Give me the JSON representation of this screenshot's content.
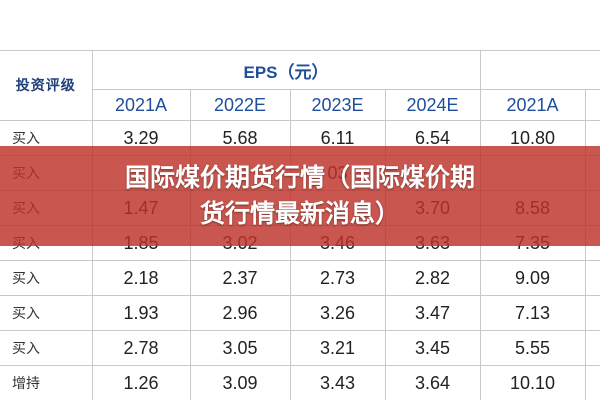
{
  "table": {
    "header": {
      "rating": "投资评级",
      "eps": "EPS（元）",
      "years": [
        "2021A",
        "2022E",
        "2023E",
        "2024E",
        "2021A"
      ]
    },
    "rows": [
      [
        "买入",
        "3.29",
        "5.68",
        "6.11",
        "6.54",
        "10.80"
      ],
      [
        "买入",
        null,
        null,
        "03",
        null,
        null
      ],
      [
        "买入",
        "1.47",
        null,
        null,
        "3.70",
        "8.58"
      ],
      [
        "买入",
        "1.85",
        "3.02",
        "3.46",
        "3.63",
        "7.35"
      ],
      [
        "买入",
        "2.18",
        "2.37",
        "2.73",
        "2.82",
        "9.09"
      ],
      [
        "买入",
        "1.93",
        "2.96",
        "3.26",
        "3.47",
        "7.13"
      ],
      [
        "买入",
        "2.78",
        "3.05",
        "3.21",
        "3.45",
        "5.55"
      ],
      [
        "增持",
        "1.26",
        "3.09",
        "3.43",
        "3.64",
        "10.10"
      ]
    ]
  },
  "banner": {
    "lines": [
      "国际煤价期货行情（国际煤价期",
      "货行情最新消息）"
    ]
  }
}
